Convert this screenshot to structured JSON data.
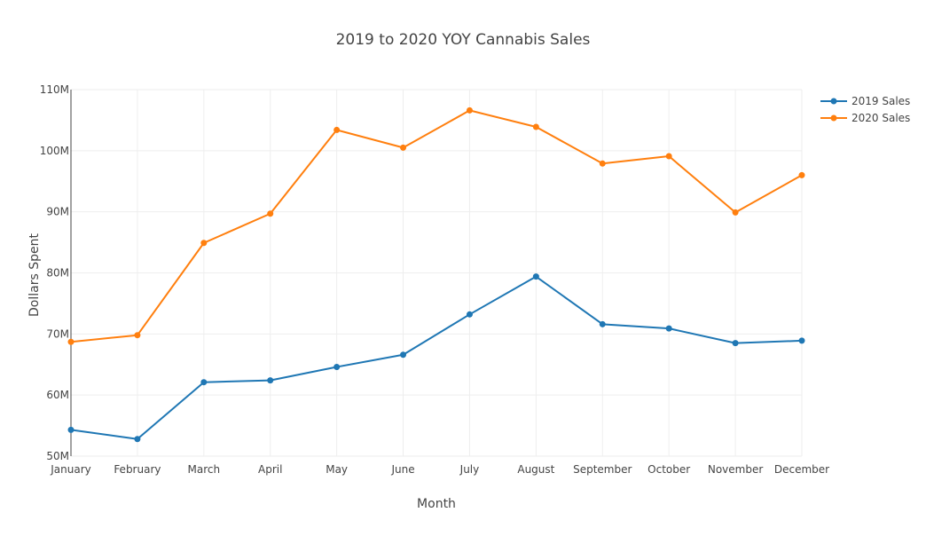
{
  "chart_data": {
    "type": "line",
    "title": "2019 to 2020 YOY Cannabis Sales",
    "xlabel": "Month",
    "ylabel": "Dollars Spent",
    "categories": [
      "January",
      "February",
      "March",
      "April",
      "May",
      "June",
      "July",
      "August",
      "September",
      "October",
      "November",
      "December"
    ],
    "ylim": [
      50000000,
      110000000
    ],
    "yticks": [
      {
        "value": 50000000,
        "label": "50M"
      },
      {
        "value": 60000000,
        "label": "60M"
      },
      {
        "value": 70000000,
        "label": "70M"
      },
      {
        "value": 80000000,
        "label": "80M"
      },
      {
        "value": 90000000,
        "label": "90M"
      },
      {
        "value": 100000000,
        "label": "100M"
      },
      {
        "value": 110000000,
        "label": "110M"
      }
    ],
    "grid": true,
    "legend_position": "top-right",
    "series": [
      {
        "name": "2019 Sales",
        "color": "#1f77b4",
        "values": [
          54300000,
          52800000,
          62100000,
          62400000,
          64600000,
          66600000,
          73200000,
          79400000,
          71600000,
          70900000,
          68500000,
          68900000
        ]
      },
      {
        "name": "2020 Sales",
        "color": "#ff7f0e",
        "values": [
          68700000,
          69800000,
          84900000,
          89700000,
          103400000,
          100500000,
          106600000,
          103900000,
          97900000,
          99100000,
          89900000,
          96000000
        ]
      }
    ]
  }
}
